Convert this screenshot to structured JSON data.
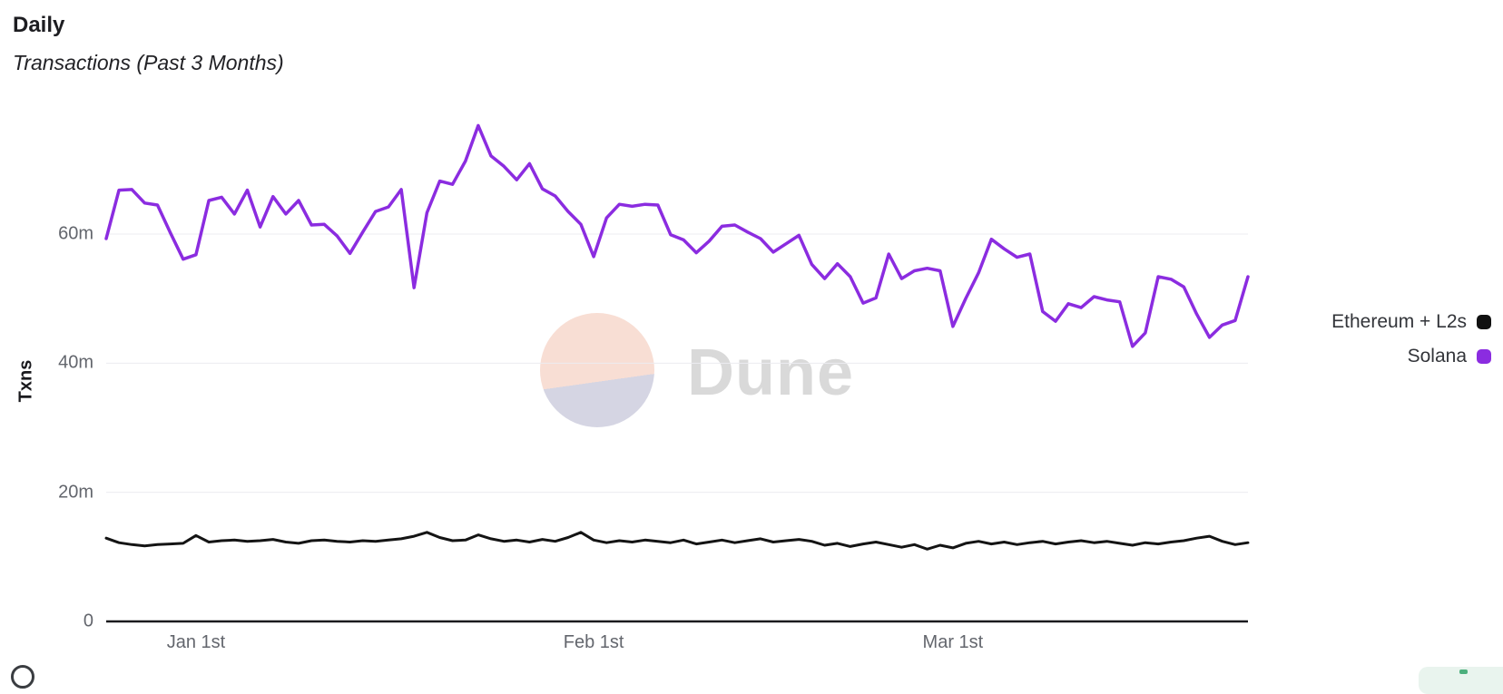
{
  "header": {
    "title": "Daily",
    "subtitle": "Transactions (Past 3 Months)"
  },
  "watermark": {
    "label": "Dune"
  },
  "legend": {
    "items": [
      {
        "label": "Ethereum + L2s",
        "color": "#111111"
      },
      {
        "label": "Solana",
        "color": "#8b2ce0"
      }
    ]
  },
  "chart_data": {
    "type": "line",
    "title": "Daily Transactions (Past 3 Months)",
    "xlabel": "",
    "ylabel": "Txns",
    "value_unit": "millions of transactions per day",
    "ylim": [
      0,
      80
    ],
    "grid": true,
    "legend_position": "right",
    "x_span": "about Dec 25 to Mar 24, one point per day",
    "y_ticks": [
      {
        "value": 0,
        "label": "0"
      },
      {
        "value": 20,
        "label": "20m"
      },
      {
        "value": 40,
        "label": "40m"
      },
      {
        "value": 60,
        "label": "60m"
      }
    ],
    "x_ticks": [
      {
        "index": 7,
        "label": "Jan 1st"
      },
      {
        "index": 38,
        "label": "Feb 1st"
      },
      {
        "index": 66,
        "label": "Mar 1st"
      }
    ],
    "series": [
      {
        "name": "Ethereum + L2s",
        "color": "#141414",
        "stroke_width": 3,
        "values": [
          12.9,
          12.2,
          11.9,
          11.7,
          11.9,
          12.0,
          12.1,
          13.3,
          12.3,
          12.5,
          12.6,
          12.4,
          12.5,
          12.7,
          12.3,
          12.1,
          12.5,
          12.6,
          12.4,
          12.3,
          12.5,
          12.4,
          12.6,
          12.8,
          13.2,
          13.8,
          13.0,
          12.5,
          12.6,
          13.4,
          12.8,
          12.4,
          12.6,
          12.3,
          12.7,
          12.4,
          13.0,
          13.8,
          12.6,
          12.2,
          12.5,
          12.3,
          12.6,
          12.4,
          12.2,
          12.6,
          12.0,
          12.3,
          12.6,
          12.2,
          12.5,
          12.8,
          12.3,
          12.5,
          12.7,
          12.4,
          11.8,
          12.1,
          11.6,
          12.0,
          12.3,
          11.9,
          11.5,
          11.9,
          11.2,
          11.8,
          11.4,
          12.1,
          12.4,
          12.0,
          12.3,
          11.9,
          12.2,
          12.4,
          12.0,
          12.3,
          12.5,
          12.2,
          12.4,
          12.1,
          11.8,
          12.2,
          12.0,
          12.3,
          12.5,
          12.9,
          13.2,
          12.4,
          11.9,
          12.2
        ]
      },
      {
        "name": "Solana",
        "color": "#8b2ce0",
        "stroke_width": 3.5,
        "values": [
          59.3,
          66.8,
          66.9,
          64.8,
          64.5,
          60.2,
          56.1,
          56.8,
          65.2,
          65.7,
          63.1,
          66.8,
          61.1,
          65.8,
          63.1,
          65.2,
          61.4,
          61.5,
          59.7,
          57.0,
          60.3,
          63.5,
          64.2,
          66.9,
          51.7,
          63.3,
          68.2,
          67.7,
          71.3,
          76.8,
          72.1,
          70.5,
          68.4,
          70.9,
          67.0,
          65.9,
          63.5,
          61.5,
          56.5,
          62.5,
          64.6,
          64.3,
          64.6,
          64.5,
          59.9,
          59.1,
          57.1,
          58.9,
          61.2,
          61.4,
          60.3,
          59.3,
          57.2,
          58.5,
          59.8,
          55.3,
          53.1,
          55.4,
          53.4,
          49.3,
          50.1,
          56.9,
          53.1,
          54.3,
          54.7,
          54.3,
          45.7,
          50.0,
          54.0,
          59.2,
          57.7,
          56.4,
          56.9,
          48.0,
          46.5,
          49.2,
          48.6,
          50.3,
          49.8,
          49.5,
          42.6,
          44.7,
          53.4,
          53.0,
          51.8,
          47.6,
          44.0,
          45.9,
          46.6,
          53.4
        ]
      }
    ]
  },
  "cut_off_elements": {
    "bottom_left": "partial circle logo",
    "bottom_right": "partial pale green button"
  }
}
